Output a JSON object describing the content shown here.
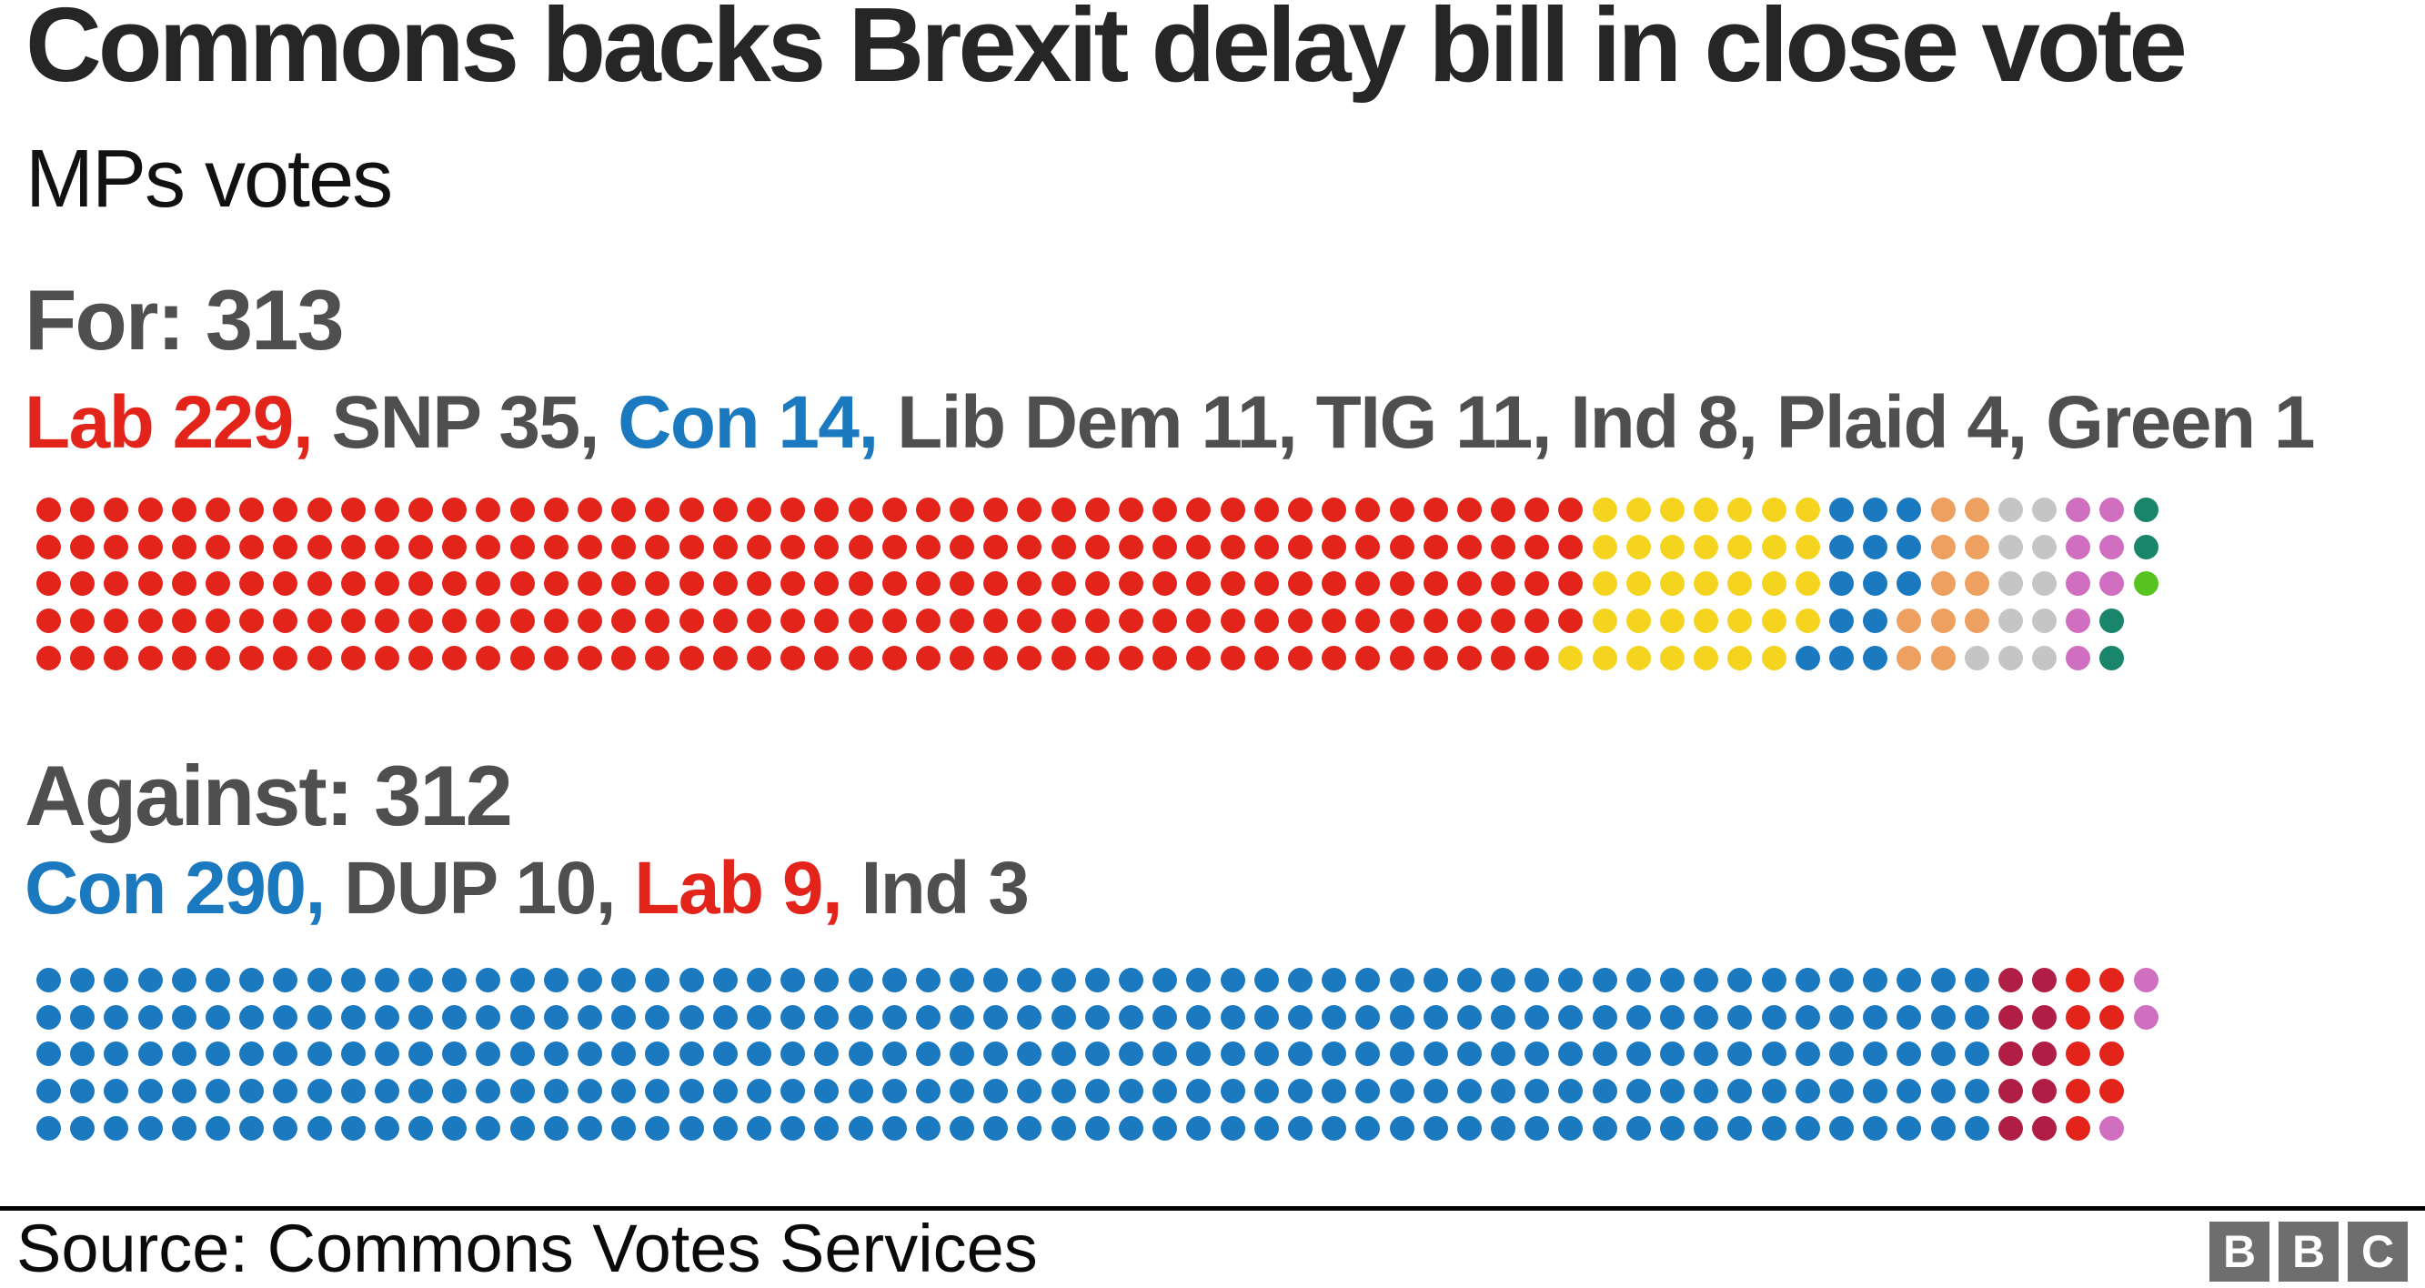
{
  "title": "Commons backs Brexit delay bill in close vote",
  "subtitle": "MPs votes",
  "source": "Source: Commons Votes Services",
  "logo": {
    "letters": [
      "B",
      "B",
      "C"
    ]
  },
  "colors": {
    "labour_red": "#e3241a",
    "snp_yellow": "#f5d41f",
    "conservative_blue": "#1b79c0",
    "libdem_orange": "#eda05f",
    "tig_grey": "#c5c5c5",
    "independent_orchid": "#d06ec0",
    "plaid_teal": "#19856a",
    "green_green": "#56c321",
    "dup_crimson": "#b01d45",
    "heading_grey": "#4f4f4f",
    "headline_black": "#262626"
  },
  "chart_data": [
    {
      "type": "waffle-dot",
      "title": "For: 313",
      "total": 313,
      "rows": 5,
      "fill_order": "column-major",
      "legend": [
        {
          "text": "Lab 229,",
          "color": "#e3241a"
        },
        {
          "text": " SNP 35,",
          "color": "#4f4f4f"
        },
        {
          "text": " Con 14,",
          "color": "#1b79c0"
        },
        {
          "text": " Lib Dem 11, TIG 11, Ind 8, Plaid 4, Green 1",
          "color": "#4f4f4f"
        }
      ],
      "series": [
        {
          "name": "Lab",
          "value": 229,
          "color": "#e3241a"
        },
        {
          "name": "SNP",
          "value": 35,
          "color": "#f5d41f"
        },
        {
          "name": "Con",
          "value": 14,
          "color": "#1b79c0"
        },
        {
          "name": "Lib Dem",
          "value": 11,
          "color": "#eda05f"
        },
        {
          "name": "TIG",
          "value": 11,
          "color": "#c5c5c5"
        },
        {
          "name": "Ind",
          "value": 8,
          "color": "#d06ec0"
        },
        {
          "name": "Plaid",
          "value": 4,
          "color": "#19856a"
        },
        {
          "name": "Green",
          "value": 1,
          "color": "#56c321"
        }
      ]
    },
    {
      "type": "waffle-dot",
      "title": "Against: 312",
      "total": 312,
      "rows": 5,
      "fill_order": "column-major",
      "legend": [
        {
          "text": "Con 290,",
          "color": "#1b79c0"
        },
        {
          "text": " DUP 10,",
          "color": "#4f4f4f"
        },
        {
          "text": " Lab 9,",
          "color": "#e3241a"
        },
        {
          "text": " Ind 3",
          "color": "#4f4f4f"
        }
      ],
      "series": [
        {
          "name": "Con",
          "value": 290,
          "color": "#1b79c0"
        },
        {
          "name": "DUP",
          "value": 10,
          "color": "#b01d45"
        },
        {
          "name": "Lab",
          "value": 9,
          "color": "#e3241a"
        },
        {
          "name": "Ind",
          "value": 3,
          "color": "#d06ec0"
        }
      ]
    }
  ]
}
